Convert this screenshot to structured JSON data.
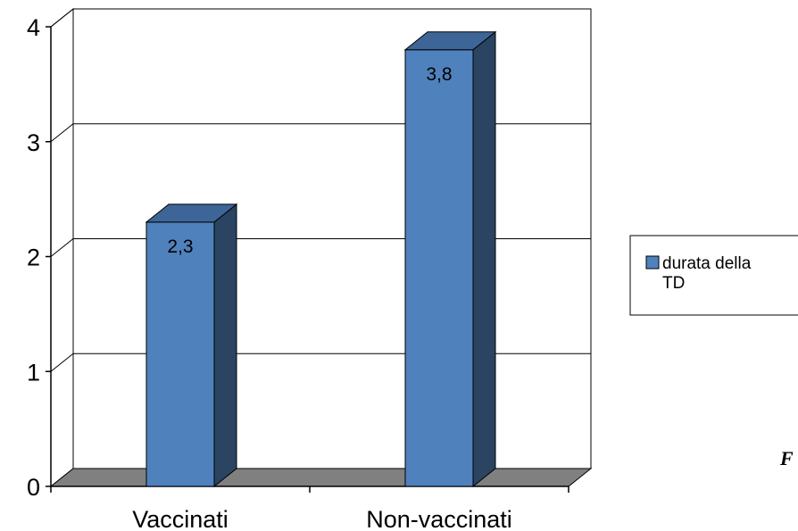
{
  "chart_data": {
    "type": "bar",
    "categories": [
      "Vaccinati",
      "Non-vaccinati"
    ],
    "series": [
      {
        "name": "durata della TD",
        "values": [
          2.3,
          3.8
        ]
      }
    ],
    "data_labels": [
      "2,3",
      "3,8"
    ],
    "y_ticks": [
      "0",
      "1",
      "2",
      "3",
      "4"
    ],
    "ylim": [
      0,
      4
    ],
    "grid": true,
    "legend_position": "right",
    "legend_lines": [
      "durata della",
      "TD"
    ],
    "title": "",
    "xlabel": "",
    "ylabel": "",
    "colors": {
      "bar_front": "#4f81bd",
      "bar_side": "#2a4461",
      "bar_top": "#3d6597",
      "floor": "#808080"
    }
  },
  "page_fragment": "F"
}
